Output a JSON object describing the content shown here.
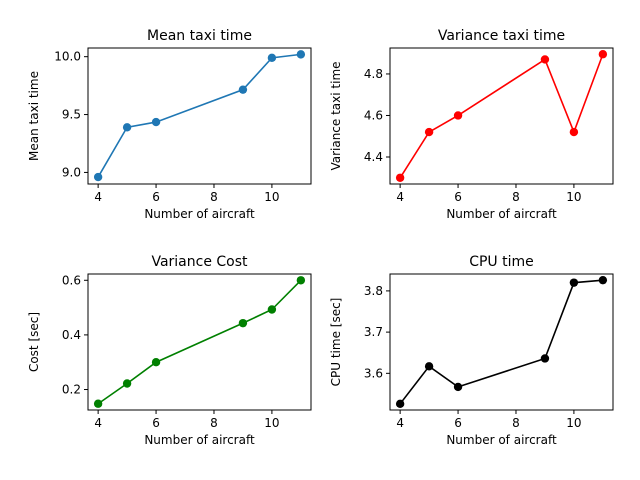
{
  "chart_data": [
    {
      "type": "line",
      "title": "Mean taxi time",
      "xlabel": "Number of aircraft",
      "ylabel": "Mean taxi time",
      "color": "#1f77b4",
      "x": [
        4,
        5,
        6,
        9,
        10,
        11
      ],
      "y": [
        8.96,
        9.39,
        9.435,
        9.715,
        9.99,
        10.02
      ],
      "xlim": [
        3.65,
        11.35
      ],
      "ylim": [
        8.9,
        10.075
      ],
      "xticks": [
        4,
        6,
        8,
        10
      ],
      "yticks": [
        9.0,
        9.5,
        10.0
      ],
      "ytick_labels": [
        "9.0",
        "9.5",
        "10.0"
      ]
    },
    {
      "type": "line",
      "title": "Variance taxi time",
      "xlabel": "Number of aircraft",
      "ylabel": "Variance taxi time",
      "color": "#ff0000",
      "x": [
        4,
        5,
        6,
        9,
        10,
        11
      ],
      "y": [
        4.3,
        4.52,
        4.6,
        4.87,
        4.52,
        4.895
      ],
      "xlim": [
        3.65,
        11.35
      ],
      "ylim": [
        4.27,
        4.925
      ],
      "xticks": [
        4,
        6,
        8,
        10
      ],
      "yticks": [
        4.4,
        4.6,
        4.8
      ],
      "ytick_labels": [
        "4.4",
        "4.6",
        "4.8"
      ]
    },
    {
      "type": "line",
      "title": "Variance Cost",
      "xlabel": "Number of aircraft",
      "ylabel": "Cost [sec]",
      "color": "#008000",
      "x": [
        4,
        5,
        6,
        9,
        10,
        11
      ],
      "y": [
        0.148,
        0.222,
        0.3,
        0.443,
        0.493,
        0.6
      ],
      "xlim": [
        3.65,
        11.35
      ],
      "ylim": [
        0.125,
        0.623
      ],
      "xticks": [
        4,
        6,
        8,
        10
      ],
      "yticks": [
        0.2,
        0.4,
        0.6
      ],
      "ytick_labels": [
        "0.2",
        "0.4",
        "0.6"
      ]
    },
    {
      "type": "line",
      "title": "CPU time",
      "xlabel": "Number of aircraft",
      "ylabel": "CPU time [sec]",
      "color": "#000000",
      "x": [
        4,
        5,
        6,
        9,
        10,
        11
      ],
      "y": [
        3.526,
        3.617,
        3.567,
        3.636,
        3.82,
        3.826
      ],
      "xlim": [
        3.65,
        11.35
      ],
      "ylim": [
        3.511,
        3.841
      ],
      "xticks": [
        4,
        6,
        8,
        10
      ],
      "yticks": [
        3.6,
        3.7,
        3.8
      ],
      "ytick_labels": [
        "3.6",
        "3.7",
        "3.8"
      ]
    }
  ]
}
